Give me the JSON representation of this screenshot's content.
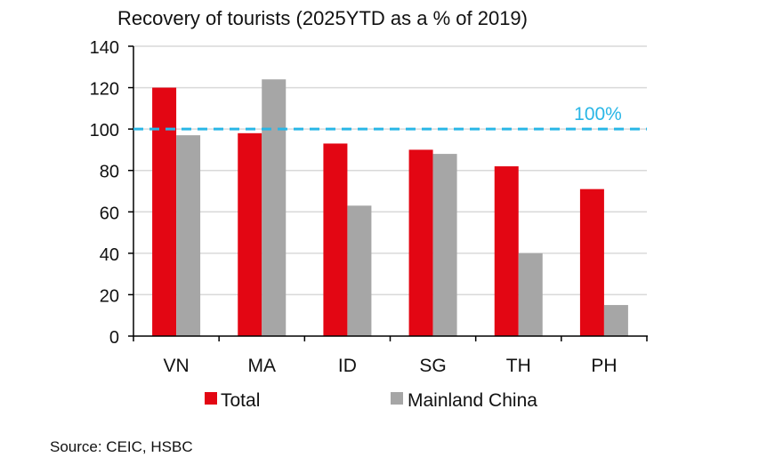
{
  "chart_data": {
    "type": "bar",
    "title": "Recovery of tourists (2025YTD as a % of 2019)",
    "categories": [
      "VN",
      "MA",
      "ID",
      "SG",
      "TH",
      "PH"
    ],
    "series": [
      {
        "name": "Total",
        "color": "#e30613",
        "values": [
          120,
          98,
          93,
          90,
          82,
          71
        ]
      },
      {
        "name": "Mainland China",
        "color": "#a6a6a6",
        "values": [
          97,
          124,
          63,
          88,
          40,
          15
        ]
      }
    ],
    "ylim": [
      0,
      140
    ],
    "yticks": [
      "0",
      "20",
      "40",
      "60",
      "80",
      "100",
      "120",
      "140"
    ],
    "ytick_values": [
      0,
      20,
      40,
      60,
      80,
      100,
      120,
      140
    ],
    "reference_line": {
      "value": 100,
      "label": "100%",
      "color": "#29b6e6"
    },
    "grid": true,
    "legend_position": "bottom",
    "xlabel": "",
    "ylabel": ""
  },
  "source": "Source: CEIC, HSBC"
}
